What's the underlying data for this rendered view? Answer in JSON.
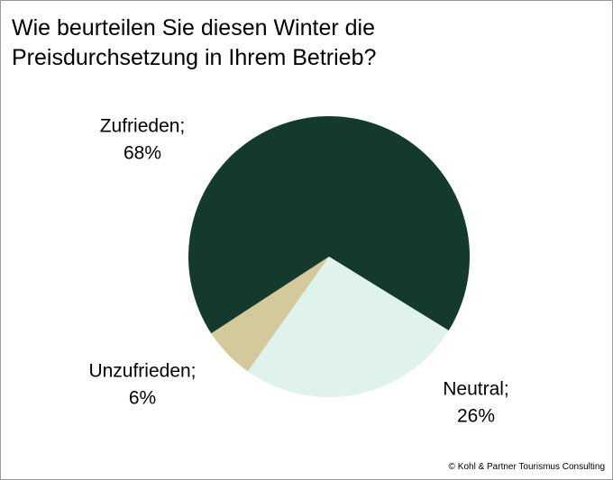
{
  "chart_data": {
    "type": "pie",
    "title": "Wie beurteilen Sie diesen Winter die Preisdurchsetzung in Ihrem Betrieb?",
    "categories": [
      "Zufrieden;",
      "Neutral;",
      "Unzufrieden;"
    ],
    "values": [
      68,
      26,
      6
    ],
    "value_labels": [
      "68%",
      "26%",
      "6%"
    ],
    "colors": [
      "#143a2e",
      "#dff3ec",
      "#d3c99a"
    ],
    "source": "© Kohl & Partner Tourismus Consulting"
  }
}
